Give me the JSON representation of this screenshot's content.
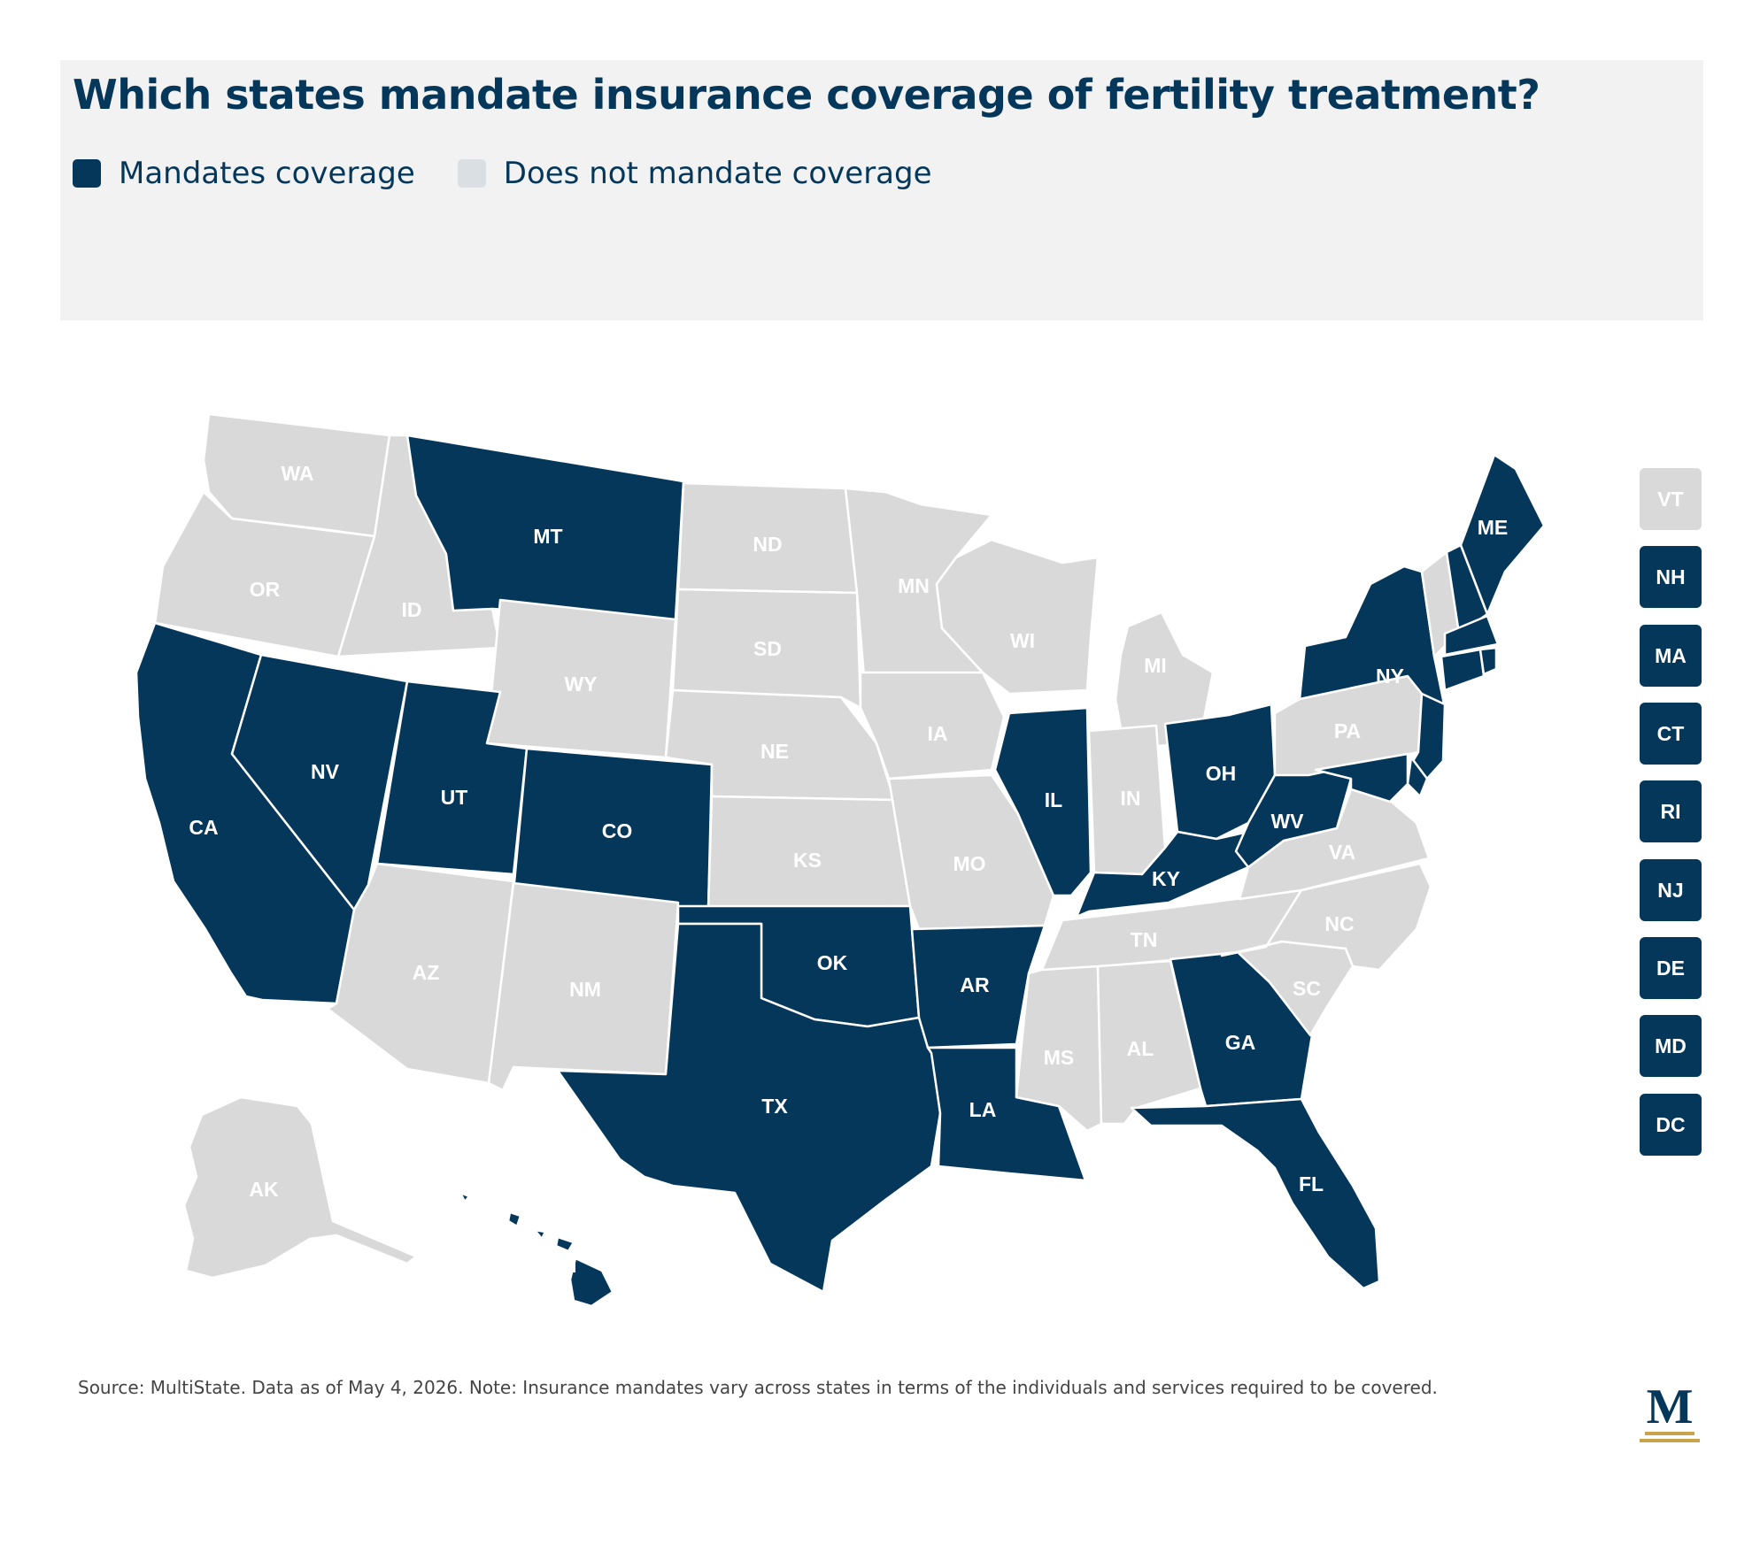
{
  "title": "Which states mandate insurance coverage of fertility treatment?",
  "legend": {
    "mandates": {
      "label": "Mandates coverage",
      "color": "#05375a"
    },
    "no_mandate": {
      "label": "Does not mandate coverage",
      "color": "#d9dfe3"
    }
  },
  "colors": {
    "mandates": "#05375a",
    "no_mandate": "#d9d9d9",
    "label_on_light": "#ffffff"
  },
  "states": [
    {
      "code": "WA",
      "mandates": false
    },
    {
      "code": "OR",
      "mandates": false
    },
    {
      "code": "CA",
      "mandates": true
    },
    {
      "code": "ID",
      "mandates": false
    },
    {
      "code": "NV",
      "mandates": true
    },
    {
      "code": "MT",
      "mandates": true
    },
    {
      "code": "WY",
      "mandates": false
    },
    {
      "code": "UT",
      "mandates": true
    },
    {
      "code": "AZ",
      "mandates": false
    },
    {
      "code": "CO",
      "mandates": true
    },
    {
      "code": "NM",
      "mandates": false
    },
    {
      "code": "ND",
      "mandates": false
    },
    {
      "code": "SD",
      "mandates": false
    },
    {
      "code": "NE",
      "mandates": false
    },
    {
      "code": "KS",
      "mandates": false
    },
    {
      "code": "OK",
      "mandates": true
    },
    {
      "code": "TX",
      "mandates": true
    },
    {
      "code": "MN",
      "mandates": false
    },
    {
      "code": "IA",
      "mandates": false
    },
    {
      "code": "MO",
      "mandates": false
    },
    {
      "code": "AR",
      "mandates": true
    },
    {
      "code": "LA",
      "mandates": true
    },
    {
      "code": "WI",
      "mandates": false
    },
    {
      "code": "IL",
      "mandates": true
    },
    {
      "code": "MI",
      "mandates": false
    },
    {
      "code": "IN",
      "mandates": false
    },
    {
      "code": "OH",
      "mandates": true
    },
    {
      "code": "KY",
      "mandates": true
    },
    {
      "code": "TN",
      "mandates": false
    },
    {
      "code": "MS",
      "mandates": false
    },
    {
      "code": "AL",
      "mandates": false
    },
    {
      "code": "GA",
      "mandates": true
    },
    {
      "code": "FL",
      "mandates": true
    },
    {
      "code": "SC",
      "mandates": false
    },
    {
      "code": "NC",
      "mandates": false
    },
    {
      "code": "VA",
      "mandates": false
    },
    {
      "code": "WV",
      "mandates": true
    },
    {
      "code": "PA",
      "mandates": false
    },
    {
      "code": "NY",
      "mandates": true
    },
    {
      "code": "ME",
      "mandates": true
    },
    {
      "code": "AK",
      "mandates": false
    },
    {
      "code": "HI",
      "mandates": true
    }
  ],
  "small_states": [
    {
      "code": "VT",
      "mandates": false
    },
    {
      "code": "NH",
      "mandates": true
    },
    {
      "code": "MA",
      "mandates": true
    },
    {
      "code": "CT",
      "mandates": true
    },
    {
      "code": "RI",
      "mandates": true
    },
    {
      "code": "NJ",
      "mandates": true
    },
    {
      "code": "DE",
      "mandates": true
    },
    {
      "code": "MD",
      "mandates": true
    },
    {
      "code": "DC",
      "mandates": true
    }
  ],
  "footnote": "Source: MultiState. Data as of May 4, 2026. Note: Insurance mandates vary across states in terms of the individuals and services required to be covered.",
  "logo": {
    "letter": "M",
    "color": "#05375a",
    "accent": "#c9a24a"
  }
}
